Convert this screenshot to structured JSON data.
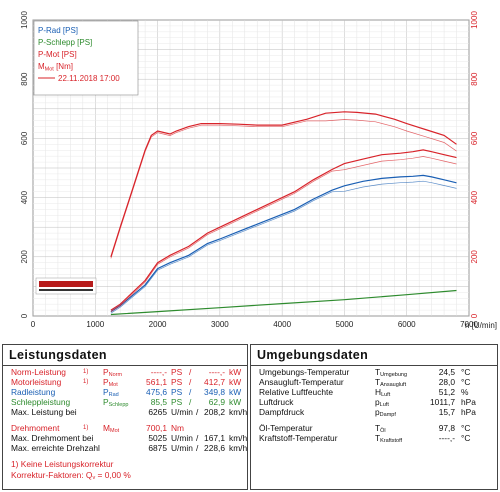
{
  "chart_data": {
    "type": "line",
    "xlabel": "n [U/min]",
    "xlim": [
      0,
      7000
    ],
    "ylim_left": [
      0,
      1000
    ],
    "ylim_right": [
      0,
      1000
    ],
    "x_ticks": [
      "0",
      "1000",
      "2000",
      "3000",
      "4000",
      "5000",
      "6000",
      "7000"
    ],
    "y_ticks_left": [
      "0",
      "200",
      "400",
      "600",
      "800",
      "1000"
    ],
    "y_ticks_right": [
      "0",
      "200",
      "400",
      "600",
      "800",
      "1000"
    ],
    "grid": true,
    "legend_position": "top-left",
    "legend": [
      {
        "label": "P-Rad [PS]",
        "color": "#1a5fb4"
      },
      {
        "label": "P-Schlepp [PS]",
        "color": "#2e8b2e"
      },
      {
        "label": "P-Mot [PS]",
        "color": "#d8232a"
      },
      {
        "label": "M",
        "sub": "Mot",
        "unit": " [Nm]",
        "color": "#d8232a"
      },
      {
        "label": "22.11.2018 17:00",
        "color": "#d8232a"
      }
    ],
    "series": [
      {
        "name": "P-Mot [PS]",
        "color": "#d8232a",
        "x": [
          1250,
          1400,
          1600,
          1800,
          2000,
          2200,
          2500,
          2800,
          3000,
          3300,
          3600,
          3900,
          4200,
          4500,
          4800,
          5000,
          5300,
          5600,
          5900,
          6100,
          6265,
          6400,
          6600,
          6800
        ],
        "y": [
          20,
          40,
          80,
          120,
          180,
          205,
          235,
          280,
          300,
          330,
          360,
          390,
          420,
          460,
          495,
          515,
          530,
          545,
          550,
          555,
          561,
          555,
          545,
          535
        ]
      },
      {
        "name": "P-Rad [PS]",
        "color": "#1a5fb4",
        "x": [
          1250,
          1400,
          1600,
          1800,
          2000,
          2200,
          2500,
          2800,
          3000,
          3300,
          3600,
          3900,
          4200,
          4500,
          4800,
          5000,
          5300,
          5600,
          5900,
          6100,
          6265,
          6400,
          6600,
          6800
        ],
        "y": [
          15,
          35,
          70,
          105,
          160,
          180,
          205,
          245,
          260,
          285,
          310,
          335,
          360,
          395,
          425,
          440,
          455,
          465,
          470,
          472,
          475,
          470,
          460,
          450
        ]
      },
      {
        "name": "P-Schlepp [PS]",
        "color": "#2e8b2e",
        "x": [
          1250,
          2000,
          3000,
          4000,
          5000,
          6000,
          6800
        ],
        "y": [
          5,
          15,
          28,
          42,
          55,
          72,
          86
        ]
      },
      {
        "name": "M [Nm]",
        "color": "#d8232a",
        "x": [
          1250,
          1400,
          1600,
          1800,
          1900,
          2000,
          2100,
          2200,
          2300,
          2500,
          2700,
          3000,
          3300,
          3600,
          4000,
          4400,
          4700,
          5000,
          5200,
          5500,
          5800,
          6000,
          6300,
          6600,
          6800
        ],
        "y": [
          200,
          300,
          430,
          560,
          610,
          625,
          620,
          615,
          625,
          640,
          650,
          650,
          648,
          645,
          645,
          665,
          685,
          690,
          688,
          682,
          665,
          650,
          630,
          610,
          580
        ]
      }
    ]
  },
  "left_panel": {
    "title": "Leistungsdaten",
    "rows": [
      {
        "label": "Norm-Leistung",
        "note": "1)",
        "sym": "P",
        "sub": "Norm",
        "v1": "----,-",
        "u1": "PS",
        "sep": "/",
        "v2": "----,-",
        "u2": "kW",
        "color": "#d8232a"
      },
      {
        "label": "Motorleistung",
        "note": "1)",
        "sym": "P",
        "sub": "Mot",
        "v1": "561,1",
        "u1": "PS",
        "sep": "/",
        "v2": "412,7",
        "u2": "kW",
        "color": "#d8232a"
      },
      {
        "label": "Radleistung",
        "note": "",
        "sym": "P",
        "sub": "Rad",
        "v1": "475,6",
        "u1": "PS",
        "sep": "/",
        "v2": "349,8",
        "u2": "kW",
        "color": "#1a5fb4"
      },
      {
        "label": "Schleppleistung",
        "note": "",
        "sym": "P",
        "sub": "Schlepp",
        "v1": "85,5",
        "u1": "PS",
        "sep": "/",
        "v2": "62,9",
        "u2": "kW",
        "color": "#2e8b2e"
      },
      {
        "label": "Max. Leistung bei",
        "note": "",
        "sym": "",
        "sub": "",
        "v1": "6265",
        "u1": "U/min",
        "sep": "/",
        "v2": "208,2",
        "u2": "km/h",
        "color": "#111"
      }
    ],
    "torque_rows": [
      {
        "label": "Drehmoment",
        "note": "1)",
        "sym": "M",
        "sub": "Mot",
        "v1": "700,1",
        "u1": "Nm",
        "color": "#d8232a"
      },
      {
        "label": "Max. Drehmoment bei",
        "note": "",
        "sym": "",
        "sub": "",
        "v1": "5025",
        "u1": "U/min",
        "sep": "/",
        "v2": "167,1",
        "u2": "km/h",
        "color": "#111"
      },
      {
        "label": "Max. erreichte Drehzahl",
        "note": "",
        "sym": "",
        "sub": "",
        "v1": "6875",
        "u1": "U/min",
        "sep": "/",
        "v2": "228,6",
        "u2": "km/h",
        "color": "#111"
      }
    ],
    "footnote_1": "1) Keine Leistungskorrektur",
    "footnote_2": "Korrektur-Faktoren: Q",
    "footnote_2_sub": "v",
    "footnote_2_val": " =  0,00 %"
  },
  "right_panel": {
    "title": "Umgebungsdaten",
    "rows": [
      {
        "label": "Umgebungs-Temperatur",
        "sym": "T",
        "sub": "Umgebung",
        "val": "24,5",
        "unit": "°C"
      },
      {
        "label": "Ansaugluft-Temperatur",
        "sym": "T",
        "sub": "Ansaugluft",
        "val": "28,0",
        "unit": "°C"
      },
      {
        "label": "Relative Luftfeuchte",
        "sym": "H",
        "sub": "Luft",
        "val": "51,2",
        "unit": "%"
      },
      {
        "label": "Luftdruck",
        "sym": "p",
        "sub": "Luft",
        "val": "1011,7",
        "unit": "hPa"
      },
      {
        "label": "Dampfdruck",
        "sym": "p",
        "sub": "Dampf",
        "val": "15,7",
        "unit": "hPa"
      },
      {
        "label": "Öl-Temperatur",
        "sym": "T",
        "sub": "Öl",
        "val": "97,8",
        "unit": "°C"
      },
      {
        "label": "Kraftstoff-Temperatur",
        "sym": "T",
        "sub": "Kraftstoff",
        "val": "----,-",
        "unit": "°C"
      }
    ]
  }
}
